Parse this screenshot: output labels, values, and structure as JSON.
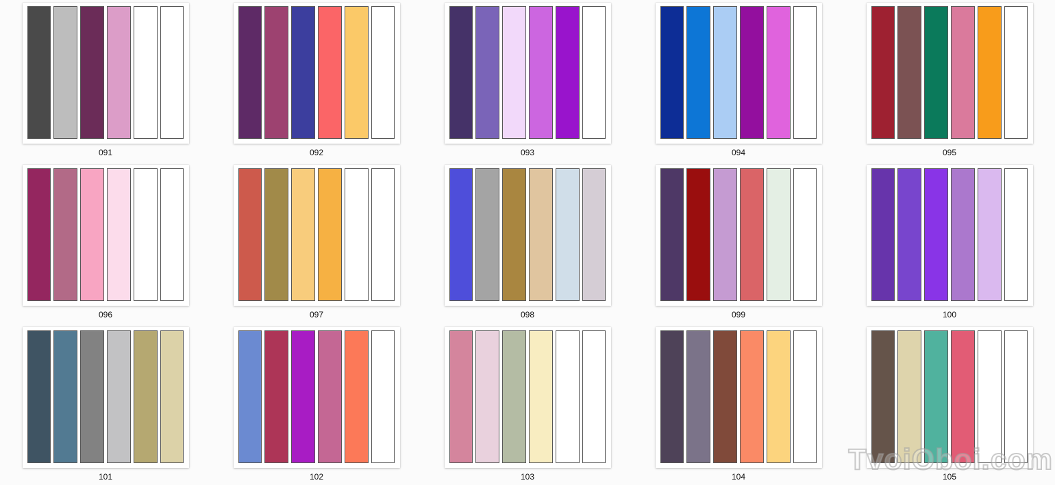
{
  "page": {
    "background_color": "#fbfbfb",
    "card_color": "#ffffff",
    "bar_border_color": "#565656"
  },
  "watermark": {
    "text": "TvoiOboi.com"
  },
  "palettes": [
    {
      "label": "091",
      "colors": [
        "#4a4a4a",
        "#bdbdbd",
        "#6b2c58",
        "#dc9dc8",
        "#ffffff",
        "#ffffff"
      ]
    },
    {
      "label": "092",
      "colors": [
        "#5e2a66",
        "#9d4270",
        "#3c3e9e",
        "#fb6567",
        "#fbc968",
        "#ffffff"
      ]
    },
    {
      "label": "093",
      "colors": [
        "#453268",
        "#7a64b8",
        "#f2d9fa",
        "#cc66e0",
        "#9914cc",
        "#ffffff"
      ]
    },
    {
      "label": "094",
      "colors": [
        "#0d2d96",
        "#0d76d6",
        "#abcdf4",
        "#930f9e",
        "#e063dd",
        "#ffffff"
      ]
    },
    {
      "label": "095",
      "colors": [
        "#9e2131",
        "#7b5253",
        "#0b7a5b",
        "#da7a9c",
        "#f89c1b",
        "#ffffff"
      ]
    },
    {
      "label": "096",
      "colors": [
        "#94265f",
        "#b26a87",
        "#f8a5c2",
        "#fcdceb",
        "#ffffff",
        "#ffffff"
      ]
    },
    {
      "label": "097",
      "colors": [
        "#cd5a4c",
        "#a18a49",
        "#f8cc7c",
        "#f6b143",
        "#ffffff",
        "#ffffff"
      ]
    },
    {
      "label": "098",
      "colors": [
        "#4e4eda",
        "#a4a4a4",
        "#a98640",
        "#e0c59f",
        "#d0dee9",
        "#d5cdd5"
      ]
    },
    {
      "label": "099",
      "colors": [
        "#4e3866",
        "#9a0e0e",
        "#c59bd2",
        "#da6467",
        "#e4efe4",
        "#ffffff"
      ]
    },
    {
      "label": "100",
      "colors": [
        "#6734ab",
        "#7845cd",
        "#8934e7",
        "#ab78cd",
        "#dab9ef",
        "#ffffff"
      ]
    },
    {
      "label": "101",
      "colors": [
        "#3f5463",
        "#527a92",
        "#828282",
        "#c2c2c4",
        "#b5a871",
        "#dcd2a8"
      ]
    },
    {
      "label": "102",
      "colors": [
        "#6b8ad1",
        "#ad3557",
        "#a81cc4",
        "#c46794",
        "#fc7958",
        "#ffffff"
      ]
    },
    {
      "label": "103",
      "colors": [
        "#d4859d",
        "#e9d1dd",
        "#b4bca4",
        "#f8edc1",
        "#ffffff",
        "#ffffff"
      ]
    },
    {
      "label": "104",
      "colors": [
        "#4e4258",
        "#7b7389",
        "#804a3a",
        "#fa8a66",
        "#fcd47e",
        "#ffffff"
      ]
    },
    {
      "label": "105",
      "colors": [
        "#65544a",
        "#ded4ac",
        "#50b29e",
        "#e25c75",
        "#ffffff",
        "#ffffff"
      ]
    }
  ]
}
